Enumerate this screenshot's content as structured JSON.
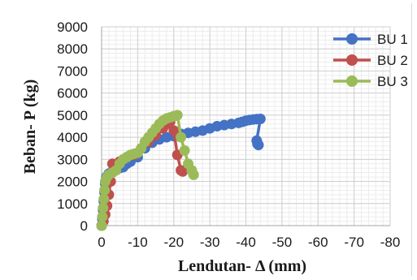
{
  "chart_data": {
    "type": "scatter",
    "xlabel": "Lendutan- Δ (mm)",
    "ylabel": "Beban- P (kg)",
    "xlim": [
      0,
      -80
    ],
    "ylim": [
      0,
      9000
    ],
    "x_ticks": [
      "0",
      "-10",
      "-20",
      "-30",
      "-40",
      "-50",
      "-60",
      "-70",
      "-80"
    ],
    "y_ticks": [
      "0",
      "1000",
      "2000",
      "3000",
      "4000",
      "5000",
      "6000",
      "7000",
      "8000",
      "9000"
    ],
    "grid": "major and minor",
    "legend_position": "top-right",
    "series": [
      {
        "name": "BU 1",
        "color": "#4472c4",
        "points": [
          [
            0,
            0
          ],
          [
            -0.2,
            300
          ],
          [
            -0.4,
            700
          ],
          [
            -0.6,
            1100
          ],
          [
            -0.8,
            1500
          ],
          [
            -1,
            1900
          ],
          [
            -1.3,
            2200
          ],
          [
            -2,
            2350
          ],
          [
            -3,
            2450
          ],
          [
            -4,
            2550
          ],
          [
            -5,
            2600
          ],
          [
            -6,
            2650
          ],
          [
            -7,
            2800
          ],
          [
            -8,
            2900
          ],
          [
            -10,
            3100
          ],
          [
            -12,
            3500
          ],
          [
            -14,
            3750
          ],
          [
            -16,
            3900
          ],
          [
            -18,
            4000
          ],
          [
            -20,
            4050
          ],
          [
            -22,
            4150
          ],
          [
            -24,
            4200
          ],
          [
            -26,
            4250
          ],
          [
            -28,
            4300
          ],
          [
            -30,
            4400
          ],
          [
            -32,
            4500
          ],
          [
            -34,
            4550
          ],
          [
            -36,
            4600
          ],
          [
            -38,
            4650
          ],
          [
            -39,
            4700
          ],
          [
            -40,
            4750
          ],
          [
            -41,
            4780
          ],
          [
            -42,
            4800
          ],
          [
            -43,
            4820
          ],
          [
            -44,
            4830
          ],
          [
            -43,
            3850
          ],
          [
            -43.2,
            3700
          ],
          [
            -43.5,
            3650
          ]
        ]
      },
      {
        "name": "BU 2",
        "color": "#c0504d",
        "points": [
          [
            0,
            0
          ],
          [
            -0.5,
            200
          ],
          [
            -1,
            500
          ],
          [
            -1.5,
            900
          ],
          [
            -2,
            1400
          ],
          [
            -2.5,
            2000
          ],
          [
            -3,
            2800
          ],
          [
            -5,
            2900
          ],
          [
            -7,
            3100
          ],
          [
            -9,
            3200
          ],
          [
            -11,
            3500
          ],
          [
            -13,
            3800
          ],
          [
            -15,
            4100
          ],
          [
            -17,
            4400
          ],
          [
            -18,
            4600
          ],
          [
            -19,
            4700
          ],
          [
            -20,
            4300
          ],
          [
            -21,
            3200
          ],
          [
            -22,
            2500
          ],
          [
            -22.5,
            2450
          ]
        ]
      },
      {
        "name": "BU 3",
        "color": "#9bbb59",
        "points": [
          [
            0,
            0
          ],
          [
            -0.2,
            400
          ],
          [
            -0.4,
            800
          ],
          [
            -0.6,
            1200
          ],
          [
            -0.8,
            1600
          ],
          [
            -1,
            2000
          ],
          [
            -1.5,
            2200
          ],
          [
            -2,
            2300
          ],
          [
            -3,
            2400
          ],
          [
            -4,
            2500
          ],
          [
            -5,
            2800
          ],
          [
            -6,
            3000
          ],
          [
            -7,
            3100
          ],
          [
            -8,
            3200
          ],
          [
            -9,
            3250
          ],
          [
            -10,
            3300
          ],
          [
            -11,
            3500
          ],
          [
            -12,
            3800
          ],
          [
            -13,
            4000
          ],
          [
            -14,
            4200
          ],
          [
            -15,
            4400
          ],
          [
            -16,
            4600
          ],
          [
            -17,
            4750
          ],
          [
            -18,
            4850
          ],
          [
            -19,
            4900
          ],
          [
            -20,
            4950
          ],
          [
            -21,
            5000
          ],
          [
            -22,
            4000
          ],
          [
            -23,
            3400
          ],
          [
            -24,
            2800
          ],
          [
            -25,
            2500
          ],
          [
            -25.5,
            2300
          ]
        ]
      }
    ]
  }
}
